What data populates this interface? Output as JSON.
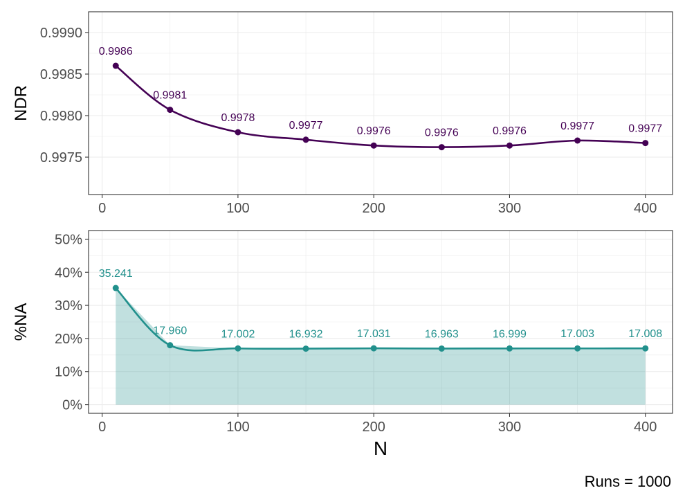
{
  "caption": "Runs = 1000",
  "colors": {
    "ndr": "#440154",
    "na_line": "#21908C",
    "na_fill": "#21908C",
    "grid": "#ebebeb",
    "panel_border": "#333333",
    "tick_text": "#4d4d4d"
  },
  "chart_data": [
    {
      "type": "line",
      "panel": "top",
      "ylabel": "NDR",
      "xlabel": "",
      "x": [
        10,
        50,
        100,
        150,
        200,
        250,
        300,
        350,
        400
      ],
      "series": [
        {
          "values": [
            0.9986,
            0.99807,
            0.9978,
            0.99771,
            0.99764,
            0.99762,
            0.99764,
            0.9977,
            0.99767
          ],
          "labels": [
            "0.9986",
            "0.9981",
            "0.9978",
            "0.9977",
            "0.9976",
            "0.9976",
            "0.9976",
            "0.9977",
            "0.9977"
          ]
        }
      ],
      "xlim": [
        -10,
        420
      ],
      "ylim": [
        0.99705,
        0.99925
      ],
      "xticks": [
        0,
        100,
        200,
        300,
        400
      ],
      "xtick_labels": [
        "0",
        "100",
        "200",
        "300",
        "400"
      ],
      "yticks": [
        0.9975,
        0.998,
        0.9985,
        0.999
      ],
      "ytick_labels": [
        "0.9975",
        "0.9980",
        "0.9985",
        "0.9990"
      ],
      "grid": true
    },
    {
      "type": "area",
      "panel": "bottom",
      "ylabel": "%NA",
      "xlabel": "N",
      "x": [
        10,
        50,
        100,
        150,
        200,
        250,
        300,
        350,
        400
      ],
      "series": [
        {
          "values": [
            35.241,
            17.96,
            17.002,
            16.932,
            17.031,
            16.963,
            16.999,
            17.003,
            17.008
          ],
          "labels": [
            "35.241",
            "17.960",
            "17.002",
            "16.932",
            "17.031",
            "16.963",
            "16.999",
            "17.003",
            "17.008"
          ]
        }
      ],
      "xlim": [
        -10,
        420
      ],
      "ylim": [
        -2.6,
        52.6
      ],
      "xticks": [
        0,
        100,
        200,
        300,
        400
      ],
      "xtick_labels": [
        "0",
        "100",
        "200",
        "300",
        "400"
      ],
      "yticks": [
        0,
        10,
        20,
        30,
        40,
        50
      ],
      "ytick_labels": [
        "0%",
        "10%",
        "20%",
        "30%",
        "40%",
        "50%"
      ],
      "grid": true
    }
  ]
}
